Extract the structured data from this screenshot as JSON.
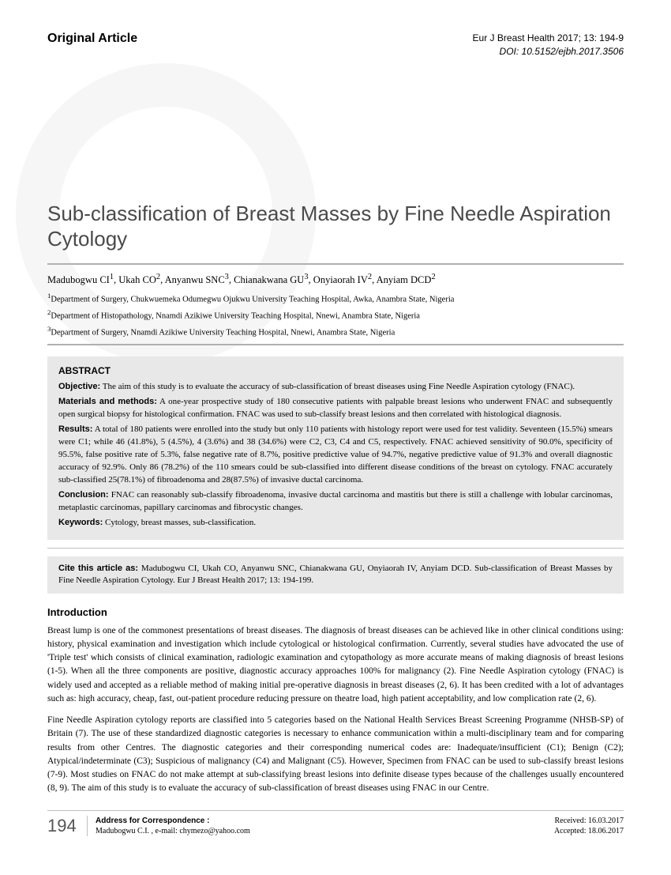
{
  "header": {
    "article_type": "Original Article",
    "journal": "Eur J Breast Health 2017; 13: 194-9",
    "doi": "DOI: 10.5152/ejbh.2017.3506"
  },
  "title": "Sub-classification of Breast Masses by Fine Needle Aspiration Cytology",
  "authors_html": "Madubogwu CI<sup>1</sup>, Ukah CO<sup>2</sup>, Anyanwu SNC<sup>3</sup>, Chianakwana GU<sup>3</sup>, Onyiaorah IV<sup>2</sup>, Anyiam DCD<sup>2</sup>",
  "affiliations": [
    "1Department of Surgery, Chukwuemeka Odumegwu Ojukwu University Teaching Hospital, Awka, Anambra State, Nigeria",
    "2Department of Histopathology, Nnamdi Azikiwe University Teaching Hospital, Nnewi, Anambra State, Nigeria",
    "3Department of Surgery, Nnamdi Azikiwe University Teaching Hospital, Nnewi, Anambra State, Nigeria"
  ],
  "abstract": {
    "heading": "ABSTRACT",
    "objective_label": "Objective:",
    "objective": " The aim of this study is to evaluate the accuracy of sub-classification of breast diseases using Fine Needle Aspiration cytology (FNAC).",
    "methods_label": "Materials and methods:",
    "methods": " A one-year prospective study of 180 consecutive patients with palpable breast lesions who underwent FNAC and subsequently open surgical biopsy for histological confirmation. FNAC was used to sub-classify breast lesions and then correlated with histological diagnosis.",
    "results_label": "Results:",
    "results": " A total of 180 patients were enrolled into the study but only 110 patients with histology report were used for test validity. Seventeen (15.5%) smears were C1; while 46 (41.8%), 5 (4.5%), 4 (3.6%) and 38 (34.6%) were C2, C3, C4 and C5, respectively. FNAC achieved sensitivity of 90.0%, specificity of 95.5%, false positive rate of 5.3%, false negative rate of 8.7%, positive predictive value of 94.7%, negative predictive value of 91.3% and overall diagnostic accuracy of 92.9%. Only 86 (78.2%) of the 110 smears could be sub-classified into different disease conditions of the breast on cytology. FNAC accurately sub-classified 25(78.1%) of fibroadenoma and 28(87.5%) of invasive ductal carcinoma.",
    "conclusion_label": "Conclusion:",
    "conclusion": " FNAC can reasonably sub-classify fibroadenoma, invasive ductal carcinoma and mastitis but there is still a challenge with lobular carcinomas, metaplastic carcinomas, papillary carcinomas and fibrocystic changes.",
    "keywords_label": "Keywords:",
    "keywords": " Cytology, breast masses, sub-classification."
  },
  "citation": "Cite this article as: Madubogwu CI, Ukah CO, Anyanwu SNC, Chianakwana GU, Onyiaorah IV, Anyiam DCD. Sub-classification of Breast Masses by Fine Needle Aspiration Cytology. Eur J Breast Health 2017; 13: 194-199.",
  "intro": {
    "heading": "Introduction",
    "p1": "Breast lump is one of the commonest presentations of breast diseases. The diagnosis of breast diseases can be achieved like in other clinical conditions using: history, physical examination and investigation which include cytological or histological confirmation. Currently, several studies have advocated the use of 'Triple test' which consists of clinical examination, radiologic examination and cytopathology as more accurate means of making diagnosis of breast lesions (1-5). When all the three components are positive, diagnostic accuracy approaches 100% for malignancy (2). Fine Needle Aspiration cytology (FNAC) is widely used and accepted as a reliable method of making initial pre-operative diagnosis in breast diseases (2, 6). It has been credited with a lot of advantages such as: high accuracy, cheap, fast, out-patient procedure reducing pressure on theatre load, high patient acceptability, and low complication rate (2, 6).",
    "p2": "Fine Needle Aspiration cytology reports are classified into 5 categories based on the National Health Services Breast Screening Programme (NHSB-SP) of Britain (7). The use of these standardized diagnostic categories is necessary to enhance communication within a multi-disciplinary team and for comparing results from other Centres. The diagnostic categories and their corresponding numerical codes are: Inadequate/insufficient (C1); Benign (C2); Atypical/indeterminate (C3); Suspicious of malignancy (C4) and Malignant (C5). However, Specimen from FNAC can be used to sub-classify breast lesions (7-9). Most studies on FNAC do not make attempt at sub-classifying breast lesions into definite disease types because of the challenges usually encountered (8, 9). The aim of this study is to evaluate the accuracy of sub-classification of breast diseases using FNAC in our Centre."
  },
  "footer": {
    "page_number": "194",
    "correspondence_label": "Address for Correspondence :",
    "correspondence": "Madubogwu C.I. , e-mail: chymezo@yahoo.com",
    "received": "Received: 16.03.2017",
    "accepted": "Accepted: 18.06.2017"
  },
  "colors": {
    "bg_gray": "#e8e8e8",
    "rule_gray": "#b0b0b0",
    "text": "#000000",
    "title_color": "#4a4a4a"
  }
}
